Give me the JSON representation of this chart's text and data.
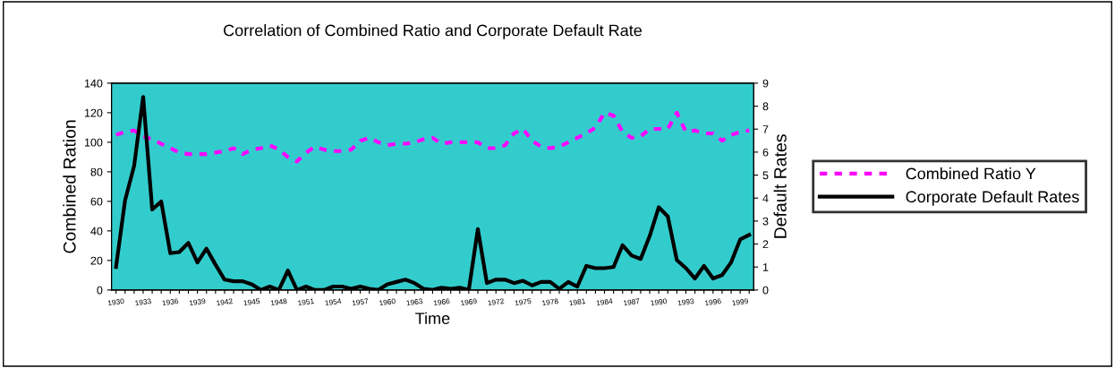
{
  "chart_data": {
    "type": "line",
    "title": "Correlation of Combined Ratio and Corporate Default Rate",
    "xlabel": "Time",
    "ylabel": "Combined Ration",
    "y2label": "Default Rates",
    "categories": [
      "1930",
      null,
      null,
      "1933",
      null,
      null,
      "1936",
      null,
      null,
      "1939",
      null,
      null,
      "1942",
      null,
      null,
      "1945",
      null,
      null,
      "1948",
      null,
      null,
      "1951",
      null,
      null,
      "1954",
      null,
      null,
      "1957",
      null,
      null,
      "1960",
      null,
      null,
      "1963",
      null,
      null,
      "1966",
      null,
      null,
      "1969",
      null,
      null,
      "1972",
      null,
      null,
      "1975",
      null,
      null,
      "1978",
      null,
      null,
      "1981",
      null,
      null,
      "1984",
      null,
      null,
      "1987",
      null,
      null,
      "1990",
      null,
      null,
      "1993",
      null,
      null,
      "1996",
      null,
      null,
      "1999",
      null
    ],
    "series": [
      {
        "name": "Combined Ratio Y",
        "color": "#ff00ff",
        "line_style": "dashed",
        "values": [
          105,
          107,
          108,
          104,
          102,
          99,
          96,
          93,
          92,
          92,
          92,
          93,
          94,
          96,
          92,
          95,
          96,
          98,
          95,
          90,
          87,
          93,
          97,
          95,
          94,
          94,
          95,
          101,
          103,
          100,
          98,
          99,
          99,
          100,
          102,
          103,
          99,
          100,
          100,
          100,
          100,
          96,
          96,
          98,
          106,
          109,
          101,
          97,
          96,
          97,
          100,
          103,
          106,
          110,
          120,
          118,
          107,
          103,
          104,
          109,
          109,
          109,
          120,
          107,
          108,
          106,
          106,
          101,
          105,
          107,
          108
        ]
      },
      {
        "name": "Corporate Default Rates",
        "color": "#000000",
        "line_style": "solid",
        "axis": "y2",
        "values": [
          1.0,
          3.9,
          5.4,
          8.4,
          3.5,
          3.85,
          1.6,
          1.65,
          2.05,
          1.2,
          1.8,
          1.1,
          0.45,
          0.38,
          0.38,
          0.25,
          0,
          0.15,
          0,
          0.85,
          0,
          0.15,
          0,
          0,
          0.15,
          0.15,
          0.05,
          0.15,
          0.05,
          0,
          0.25,
          0.35,
          0.45,
          0.3,
          0.05,
          0,
          0.1,
          0.05,
          0.1,
          0,
          2.65,
          0.3,
          0.45,
          0.45,
          0.3,
          0.4,
          0.2,
          0.35,
          0.35,
          0.05,
          0.35,
          0.15,
          1.05,
          0.95,
          0.95,
          1.0,
          1.95,
          1.5,
          1.35,
          2.35,
          3.6,
          3.2,
          1.3,
          0.95,
          0.5,
          1.05,
          0.5,
          0.65,
          1.2,
          2.2,
          2.4
        ]
      }
    ],
    "ylim": [
      0,
      140
    ],
    "yticks": [
      0,
      20,
      40,
      60,
      80,
      100,
      120,
      140
    ],
    "y2lim": [
      0,
      9
    ],
    "y2ticks": [
      0,
      1,
      2,
      3,
      4,
      5,
      6,
      7,
      8,
      9
    ],
    "grid": false,
    "legend": "right"
  }
}
